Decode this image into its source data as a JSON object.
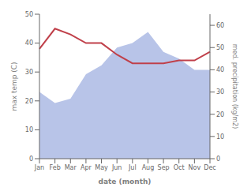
{
  "chart_data": {
    "type": "line",
    "categories": [
      "Jan",
      "Feb",
      "Mar",
      "Apr",
      "May",
      "Jun",
      "Jul",
      "Aug",
      "Sep",
      "Oct",
      "Nov",
      "Dec"
    ],
    "xlabel": "date (month)",
    "ylabel": "max temp (C)",
    "y2label": "med. precipitation (kg/m2)",
    "series": [
      {
        "type": "area",
        "axis": "y2",
        "color": "#b8c4e8",
        "values": [
          30,
          25,
          27,
          38,
          42,
          50,
          52,
          57,
          48,
          45,
          40,
          40
        ]
      },
      {
        "type": "line",
        "axis": "y",
        "color": "#c0404a",
        "values": [
          38,
          45,
          43,
          40,
          40,
          36,
          33,
          33,
          33,
          34,
          34,
          37
        ]
      }
    ],
    "ylim": [
      0,
      50
    ],
    "yticks": [
      0,
      10,
      20,
      30,
      40,
      50
    ],
    "y2lim": [
      0,
      65
    ],
    "y2ticks": [
      0,
      10,
      20,
      30,
      40,
      50,
      60
    ],
    "grid": false
  }
}
